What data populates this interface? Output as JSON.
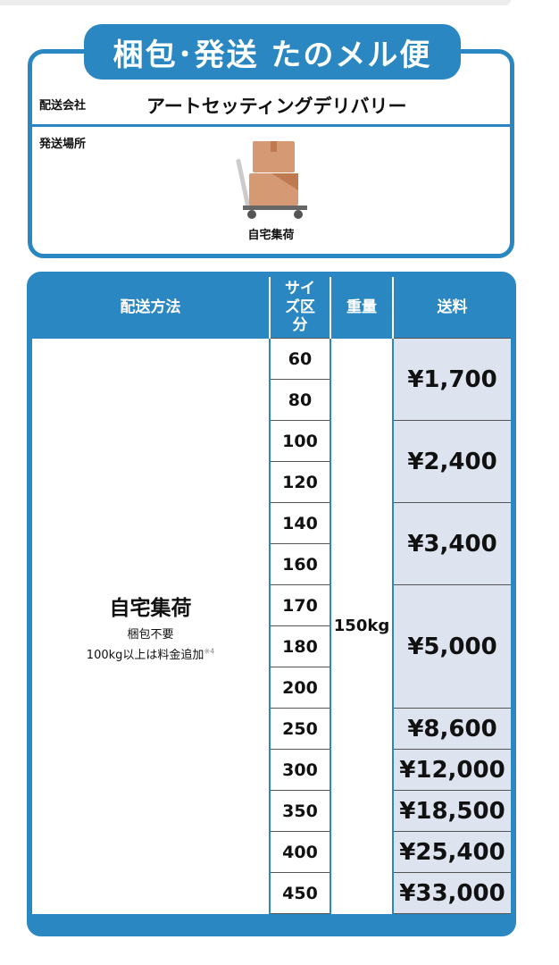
{
  "title": "梱包･発送 たのメル便",
  "info": {
    "company_label": "配送会社",
    "company": "アートセッティングデリバリー",
    "place_label": "発送場所",
    "place_icon": "box-cart-icon",
    "place": "自宅集荷"
  },
  "table": {
    "headers": [
      "配送方法",
      "サイズ区分",
      "重量",
      "送料"
    ],
    "method": {
      "title": "自宅集荷",
      "note1": "梱包不要",
      "note2": "100kg以上は料金追加",
      "note_mark": "※4"
    },
    "weight": "150kg",
    "sizes": [
      "60",
      "80",
      "100",
      "120",
      "140",
      "160",
      "170",
      "180",
      "200",
      "250",
      "300",
      "350",
      "400",
      "450"
    ],
    "prices": [
      {
        "label": "¥1,700",
        "sizes": [
          "60",
          "80"
        ]
      },
      {
        "label": "¥2,400",
        "sizes": [
          "100",
          "120"
        ]
      },
      {
        "label": "¥3,400",
        "sizes": [
          "140",
          "160"
        ]
      },
      {
        "label": "¥5,000",
        "sizes": [
          "170",
          "180",
          "200"
        ]
      },
      {
        "label": "¥8,600",
        "sizes": [
          "250"
        ]
      },
      {
        "label": "¥12,000",
        "sizes": [
          "300"
        ]
      },
      {
        "label": "¥18,500",
        "sizes": [
          "350"
        ]
      },
      {
        "label": "¥25,400",
        "sizes": [
          "400"
        ]
      },
      {
        "label": "¥33,000",
        "sizes": [
          "450"
        ]
      }
    ]
  },
  "colors": {
    "accent": "#2a87c1",
    "price_bg": "#dde4ef"
  }
}
